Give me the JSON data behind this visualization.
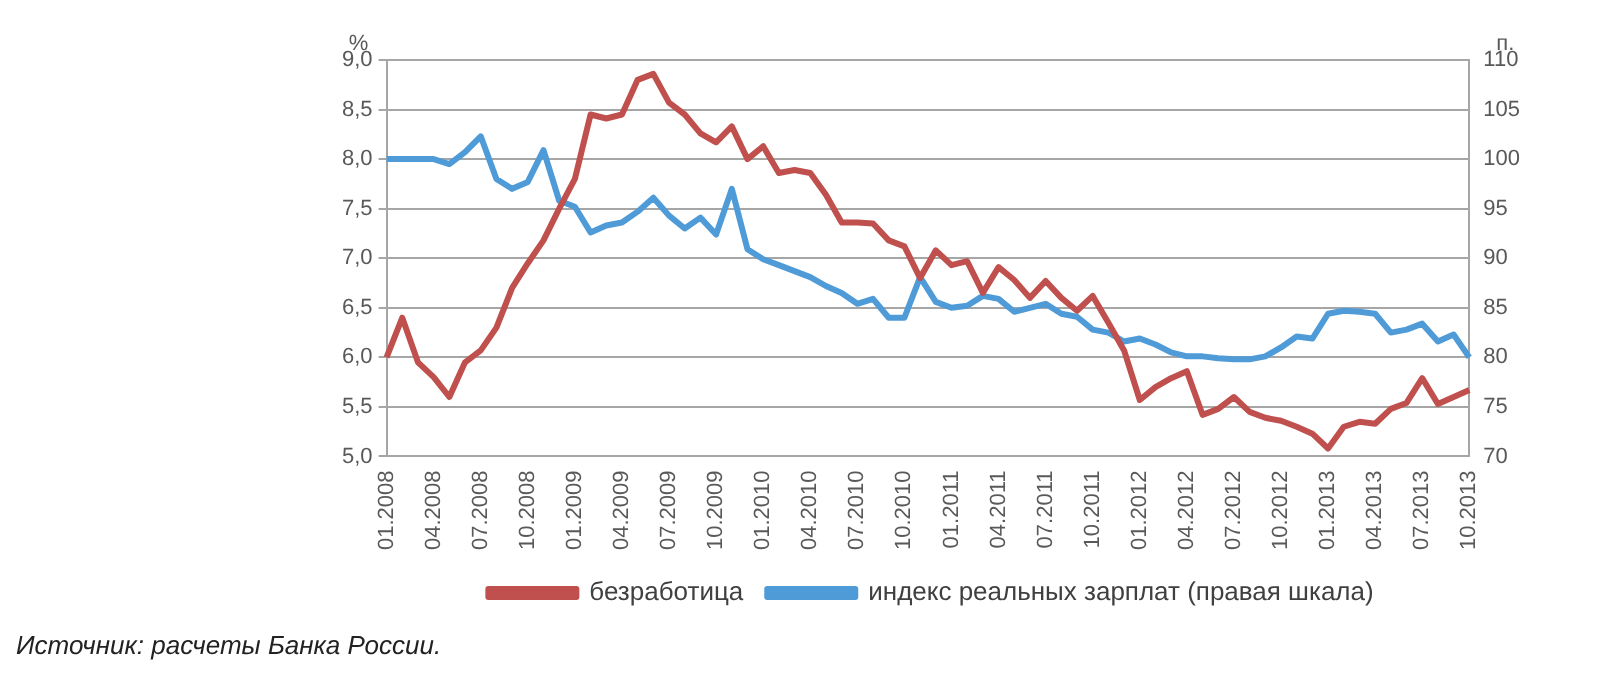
{
  "chart_data": {
    "type": "line",
    "categories": [
      "01.2008",
      null,
      null,
      "04.2008",
      null,
      null,
      "07.2008",
      null,
      null,
      "10.2008",
      null,
      null,
      "01.2009",
      null,
      null,
      "04.2009",
      null,
      null,
      "07.2009",
      null,
      null,
      "10.2009",
      null,
      null,
      "01.2010",
      null,
      null,
      "04.2010",
      null,
      null,
      "07.2010",
      null,
      null,
      "10.2010",
      null,
      null,
      "01.2011",
      null,
      null,
      "04.2011",
      null,
      null,
      "07.2011",
      null,
      null,
      "10.2011",
      null,
      null,
      "01.2012",
      null,
      null,
      "04.2012",
      null,
      null,
      "07.2012",
      null,
      null,
      "10.2012",
      null,
      null,
      "01.2013",
      null,
      null,
      "04.2013",
      null,
      null,
      "07.2013",
      null,
      null,
      "10.2013"
    ],
    "series": [
      {
        "name": "безработица",
        "color": "#c0504d",
        "values": [
          6.0,
          6.4,
          5.95,
          5.8,
          5.6,
          5.95,
          6.07,
          6.3,
          6.7,
          6.95,
          7.18,
          7.5,
          7.8,
          8.45,
          8.41,
          8.45,
          8.8,
          8.86,
          8.57,
          8.45,
          8.26,
          8.17,
          8.33,
          8.0,
          8.13,
          7.86,
          7.89,
          7.86,
          7.64,
          7.36,
          7.36,
          7.35,
          7.18,
          7.12,
          6.8,
          7.08,
          6.93,
          6.97,
          6.65,
          6.91,
          6.78,
          6.6,
          6.77,
          6.6,
          6.47,
          6.62,
          6.35,
          6.07,
          5.57,
          5.7,
          5.79,
          5.86,
          5.42,
          5.48,
          5.6,
          5.45,
          5.39,
          5.36,
          5.3,
          5.23,
          5.08,
          5.3,
          5.35,
          5.33,
          5.48,
          5.54,
          5.79,
          5.53,
          5.6,
          5.67
        ]
      },
      {
        "name": "индекс реальных зарплат (правая шкала)",
        "color": "#4f9bd8",
        "axis": "y2",
        "values": [
          100,
          100,
          100,
          100,
          99.5,
          100.7,
          102.3,
          98,
          97,
          97.7,
          100.9,
          95.8,
          95.2,
          92.6,
          93.3,
          93.6,
          94.7,
          96.1,
          94.3,
          93,
          94.1,
          92.4,
          97,
          90.9,
          89.9,
          89.3,
          88.7,
          88.1,
          87.2,
          86.5,
          85.4,
          85.9,
          84,
          84,
          88.1,
          85.6,
          85,
          85.2,
          86.2,
          85.9,
          84.6,
          85,
          85.4,
          84.4,
          84.1,
          82.8,
          82.5,
          81.6,
          81.9,
          81.3,
          80.5,
          80.1,
          80.1,
          79.9,
          79.8,
          79.8,
          80.1,
          81,
          82.1,
          81.9,
          84.4,
          84.7,
          84.6,
          84.4,
          82.5,
          82.8,
          83.4,
          81.6,
          82.3,
          80
        ]
      }
    ],
    "ylabel": "%",
    "y2label": "п.",
    "ylim": [
      5,
      9
    ],
    "yticks": [
      {
        "value": 5,
        "label": "5,0"
      },
      {
        "value": 5.5,
        "label": "5,5"
      },
      {
        "value": 6,
        "label": "6,0"
      },
      {
        "value": 6.5,
        "label": "6,5"
      },
      {
        "value": 7,
        "label": "7,0"
      },
      {
        "value": 7.5,
        "label": "7,5"
      },
      {
        "value": 8,
        "label": "8,0"
      },
      {
        "value": 8.5,
        "label": "8,5"
      },
      {
        "value": 9,
        "label": "9,0"
      }
    ],
    "y2lim": [
      70,
      110
    ],
    "y2ticks": [
      70,
      75,
      80,
      85,
      90,
      95,
      100,
      105,
      110
    ],
    "grid": "y",
    "legend": "bottom",
    "marker": "none",
    "line_style": "solid",
    "annotations": [
      "Источник: расчеты Банка России."
    ]
  }
}
